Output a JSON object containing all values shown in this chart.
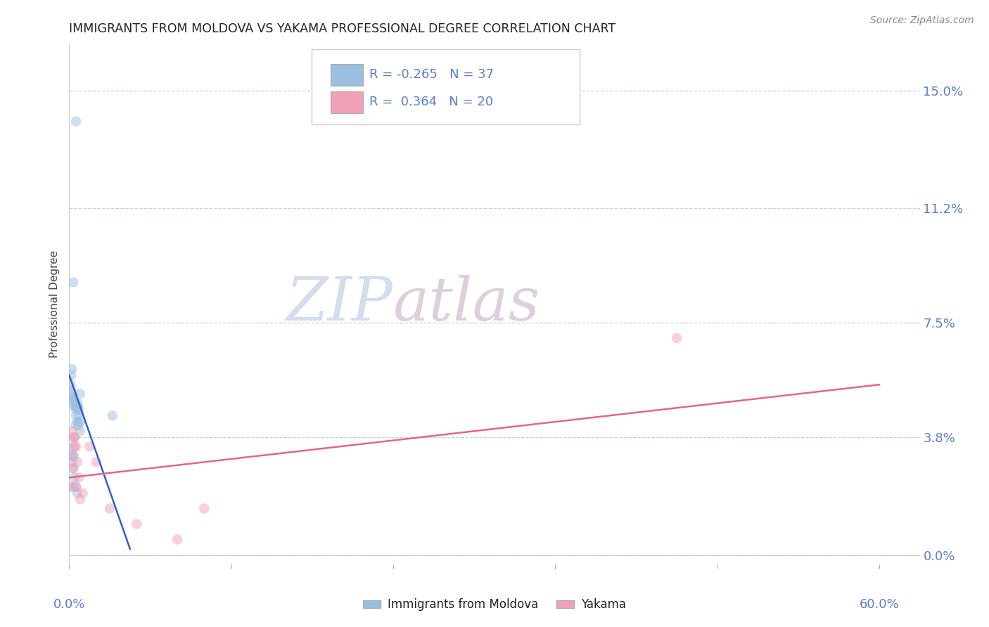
{
  "title": "IMMIGRANTS FROM MOLDOVA VS YAKAMA PROFESSIONAL DEGREE CORRELATION CHART",
  "source": "Source: ZipAtlas.com",
  "ylabel": "Professional Degree",
  "ytick_labels": [
    "0.0%",
    "3.8%",
    "7.5%",
    "11.2%",
    "15.0%"
  ],
  "ytick_values": [
    0.0,
    3.8,
    7.5,
    11.2,
    15.0
  ],
  "xtick_values": [
    0.0,
    12.0,
    24.0,
    36.0,
    48.0,
    60.0
  ],
  "xlim": [
    0.0,
    63.0
  ],
  "ylim": [
    -0.3,
    16.5
  ],
  "blue_scatter_x": [
    0.5,
    0.3,
    0.2,
    0.15,
    0.1,
    0.2,
    0.25,
    0.3,
    0.35,
    0.4,
    0.45,
    0.5,
    0.55,
    0.6,
    0.65,
    0.7,
    0.75,
    0.8,
    0.3,
    0.4,
    0.5,
    0.6,
    0.7,
    0.8,
    0.4,
    0.3,
    0.25,
    0.2,
    0.3,
    0.4,
    0.5,
    0.6,
    3.2,
    0.8,
    0.5,
    0.35,
    0.2
  ],
  "blue_scatter_y": [
    14.0,
    8.8,
    6.0,
    5.8,
    5.5,
    5.3,
    5.2,
    5.1,
    5.0,
    4.9,
    4.8,
    4.7,
    4.8,
    4.9,
    4.8,
    4.7,
    4.5,
    4.3,
    5.0,
    4.8,
    4.5,
    4.3,
    4.2,
    4.0,
    3.8,
    3.5,
    3.2,
    3.0,
    2.8,
    2.5,
    2.2,
    2.0,
    4.5,
    5.2,
    4.2,
    3.2,
    2.2
  ],
  "pink_scatter_x": [
    0.15,
    0.2,
    0.3,
    0.4,
    0.5,
    0.6,
    0.7,
    0.8,
    1.0,
    1.5,
    2.0,
    3.0,
    5.0,
    8.0,
    0.2,
    0.3,
    0.4,
    0.5,
    10.0,
    45.0
  ],
  "pink_scatter_y": [
    3.2,
    2.2,
    2.8,
    3.8,
    3.5,
    3.0,
    2.5,
    1.8,
    2.0,
    3.5,
    3.0,
    1.5,
    1.0,
    0.5,
    4.0,
    3.8,
    3.5,
    2.2,
    1.5,
    7.0
  ],
  "blue_line_x": [
    0.0,
    4.5
  ],
  "blue_line_y": [
    5.8,
    0.2
  ],
  "pink_line_x": [
    0.0,
    60.0
  ],
  "pink_line_y": [
    2.5,
    5.5
  ],
  "scatter_size": 110,
  "scatter_alpha": 0.5,
  "blue_color": "#9bbfe0",
  "pink_color": "#f2a0b8",
  "line_blue_color": "#3060c0",
  "line_pink_color": "#e06888",
  "background_color": "#ffffff",
  "grid_color": "#c0cfe8",
  "title_color": "#222222",
  "ylabel_color": "#444444",
  "tick_label_color": "#5b7fc8",
  "legend_edge_color": "#cccccc",
  "legend_text_color": "#5b7fc8",
  "source_color": "#888888",
  "watermark_zip_color": "#cdd8e8",
  "watermark_atlas_color": "#d8c8d8"
}
